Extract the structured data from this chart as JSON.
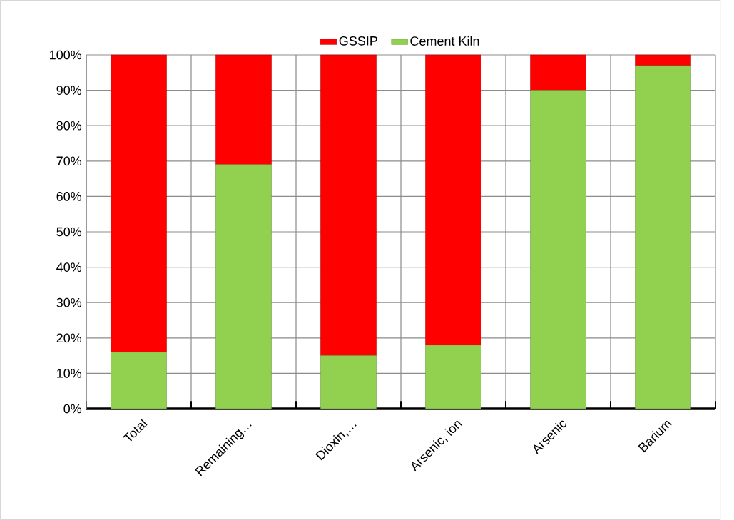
{
  "chart_data": {
    "type": "bar",
    "stacked": true,
    "categories": [
      "Total",
      "Remaining…",
      "Dioxin,…",
      "Arsenic, ion",
      "Arsenic",
      "Barium"
    ],
    "series": [
      {
        "name": "Cement Kiln",
        "color": "#92d050",
        "values": [
          16,
          69,
          15,
          18,
          90,
          97
        ]
      },
      {
        "name": "GSSIP",
        "color": "#ff0000",
        "values": [
          84,
          31,
          85,
          82,
          10,
          3
        ]
      }
    ],
    "ylim": [
      0,
      100
    ],
    "yticks": [
      {
        "value": 0,
        "label": "0%"
      },
      {
        "value": 10,
        "label": "10%"
      },
      {
        "value": 20,
        "label": "20%"
      },
      {
        "value": 30,
        "label": "30%"
      },
      {
        "value": 40,
        "label": "40%"
      },
      {
        "value": 50,
        "label": "50%"
      },
      {
        "value": 60,
        "label": "60%"
      },
      {
        "value": 70,
        "label": "70%"
      },
      {
        "value": 80,
        "label": "80%"
      },
      {
        "value": 90,
        "label": "90%"
      },
      {
        "value": 100,
        "label": "100%"
      }
    ],
    "grid": true,
    "legend": "top"
  }
}
